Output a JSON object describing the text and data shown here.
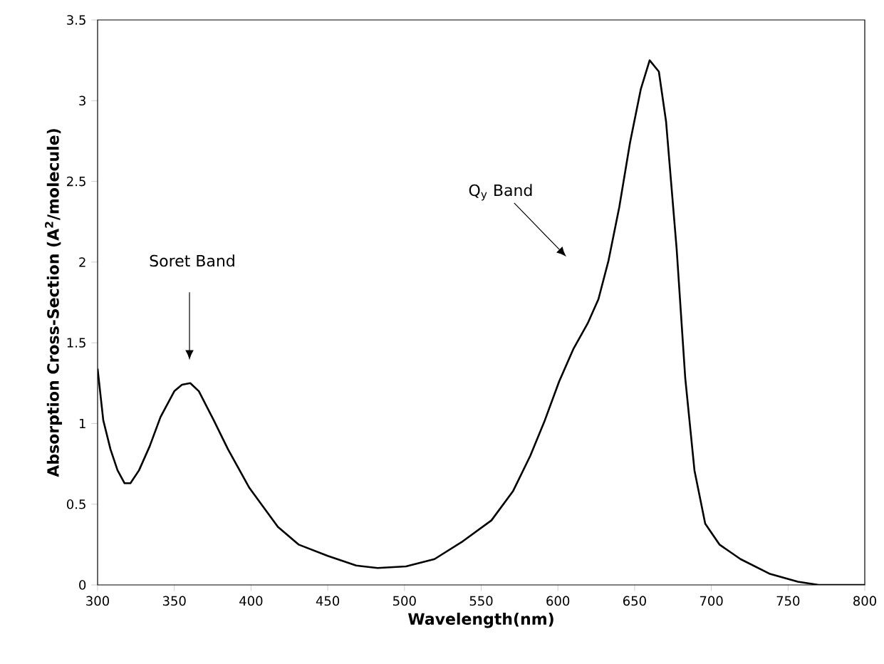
{
  "chart_data": {
    "type": "line",
    "xlabel": "Wavelength(nm)",
    "ylabel": "Absorption Cross-Section (A$^{2}$/molecule)",
    "xlim": [
      300,
      800
    ],
    "ylim": [
      0,
      3.5
    ],
    "xticks": [
      300,
      350,
      400,
      450,
      500,
      550,
      600,
      650,
      700,
      750,
      800
    ],
    "yticks": [
      0,
      0.5,
      1,
      1.5,
      2,
      2.5,
      3,
      3.5
    ],
    "grid": false,
    "series": [
      {
        "color": "#000000",
        "x": [
          300,
          303.7,
          308.4,
          313,
          317.6,
          321.4,
          327,
          334,
          341,
          350,
          355,
          360.4,
          366,
          375.7,
          385,
          399,
          417.5,
          431,
          450,
          468.5,
          482.5,
          501,
          519.6,
          538,
          556.7,
          570.7,
          582,
          591.5,
          600.8,
          610,
          619.4,
          626.4,
          633,
          640,
          647,
          654,
          659.8,
          665.8,
          670.5,
          677.4,
          683,
          689,
          696,
          705.3,
          719,
          737.8,
          756.4,
          770,
          800
        ],
        "values": [
          1.34,
          1.02,
          0.84,
          0.71,
          0.63,
          0.63,
          0.71,
          0.86,
          1.04,
          1.2,
          1.24,
          1.25,
          1.2,
          1.02,
          0.84,
          0.6,
          0.36,
          0.25,
          0.18,
          0.12,
          0.105,
          0.115,
          0.16,
          0.27,
          0.4,
          0.58,
          0.8,
          1.02,
          1.26,
          1.46,
          1.62,
          1.77,
          2.01,
          2.34,
          2.74,
          3.07,
          3.25,
          3.18,
          2.87,
          2.08,
          1.28,
          0.71,
          0.38,
          0.25,
          0.16,
          0.07,
          0.02,
          0,
          0
        ]
      }
    ],
    "annotations": [
      "Soret Band",
      "Q$_{y}$ Band"
    ]
  }
}
